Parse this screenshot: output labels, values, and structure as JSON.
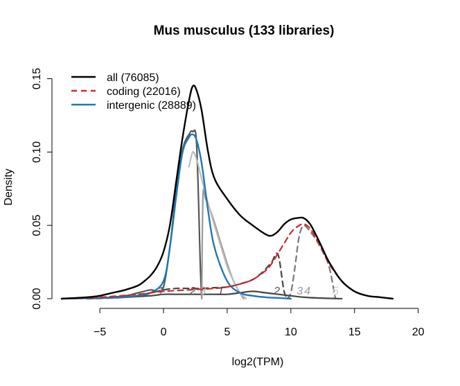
{
  "chart_data": {
    "type": "line",
    "title": "Mus musculus (133 libraries)",
    "xlabel": "log2(TPM)",
    "ylabel": "Density",
    "xlim": [
      -8,
      21
    ],
    "ylim": [
      0,
      0.155
    ],
    "xticks": [
      -5,
      0,
      5,
      10,
      15,
      20
    ],
    "xtick_labels": [
      "−5",
      "0",
      "5",
      "10",
      "15",
      "20"
    ],
    "yticks": [
      0,
      0.05,
      0.1,
      0.15
    ],
    "ytick_labels": [
      "0.00",
      "0.05",
      "0.10",
      "0.15"
    ],
    "grid": false,
    "legend_position": "top-left",
    "legend": [
      {
        "label": "all (76085)",
        "color": "#000000",
        "dash": "solid"
      },
      {
        "label": "coding (22016)",
        "color": "#d62728",
        "dash": "dashed"
      },
      {
        "label": "intergenic (28889)",
        "color": "#1f77b4",
        "dash": "solid"
      }
    ],
    "series": [
      {
        "name": "all (76085)",
        "color": "#000000",
        "dash": "solid",
        "width": 2.4,
        "x": [
          -8,
          -6,
          -5,
          -4,
          -3,
          -2,
          -1.5,
          -1,
          -0.5,
          0,
          0.5,
          1,
          1.5,
          2,
          2.3,
          2.6,
          3,
          3.5,
          4,
          5,
          6,
          7,
          8,
          8.5,
          9,
          9.5,
          10,
          10.5,
          11,
          11.5,
          12,
          12.5,
          13,
          14,
          15,
          16,
          17,
          18
        ],
        "y": [
          0,
          0.001,
          0.002,
          0.004,
          0.006,
          0.009,
          0.012,
          0.016,
          0.022,
          0.032,
          0.05,
          0.08,
          0.11,
          0.135,
          0.145,
          0.142,
          0.128,
          0.1,
          0.082,
          0.068,
          0.057,
          0.05,
          0.044,
          0.043,
          0.046,
          0.051,
          0.054,
          0.055,
          0.055,
          0.051,
          0.043,
          0.034,
          0.025,
          0.012,
          0.005,
          0.002,
          0.001,
          0
        ]
      },
      {
        "name": "coding (22016)",
        "color": "#d62728",
        "dash": "dashed",
        "width": 2.2,
        "x": [
          -8,
          -5,
          -2,
          0,
          2,
          4,
          5,
          6,
          7,
          8,
          8.5,
          9,
          9.5,
          10,
          10.5,
          11,
          11.5,
          12,
          12.5,
          13,
          14,
          15,
          16,
          17,
          18
        ],
        "y": [
          0,
          0.001,
          0.003,
          0.005,
          0.006,
          0.007,
          0.008,
          0.01,
          0.013,
          0.019,
          0.024,
          0.031,
          0.038,
          0.045,
          0.049,
          0.051,
          0.048,
          0.041,
          0.033,
          0.024,
          0.012,
          0.005,
          0.002,
          0.001,
          0
        ]
      },
      {
        "name": "",
        "color": "#444444",
        "dash": "dashed",
        "width": 2.2,
        "x": [
          -6,
          -3,
          -1,
          0,
          1,
          2,
          3,
          4,
          5,
          6,
          7,
          7.5,
          8,
          8.5,
          9,
          9.5,
          10
        ],
        "y": [
          0,
          0.001,
          0.004,
          0.006,
          0.007,
          0.007,
          0.007,
          0.0075,
          0.008,
          0.01,
          0.013,
          0.016,
          0.02,
          0.025,
          0.03,
          0.004,
          0
        ]
      },
      {
        "name": "",
        "color": "#777777",
        "dash": "dashed",
        "width": 2.2,
        "x": [
          9.7,
          10,
          10.3,
          10.6,
          10.8,
          11,
          11.2,
          11.5,
          12,
          12.5,
          13,
          13.5
        ],
        "y": [
          0,
          0.004,
          0.02,
          0.04,
          0.047,
          0.05,
          0.049,
          0.046,
          0.04,
          0.032,
          0.022,
          0
        ]
      },
      {
        "name": "intergenic (28889)",
        "color": "#1f77b4",
        "dash": "solid",
        "width": 2.4,
        "x": [
          -8,
          -5,
          -3,
          -2,
          -1,
          0,
          0.5,
          1,
          1.5,
          2,
          2.3,
          2.6,
          3,
          3.5,
          4,
          5,
          6,
          7,
          8,
          9,
          10
        ],
        "y": [
          0,
          0.0005,
          0.001,
          0.002,
          0.004,
          0.012,
          0.035,
          0.07,
          0.1,
          0.11,
          0.112,
          0.108,
          0.092,
          0.06,
          0.035,
          0.012,
          0.004,
          0.002,
          0.001,
          0.0005,
          0
        ]
      },
      {
        "name": "",
        "color": "#555555",
        "dash": "solid",
        "width": 2.2,
        "x": [
          -8,
          -5,
          -3,
          -2,
          -1,
          -0.5,
          0,
          0.5,
          1,
          1.5,
          2,
          2.3,
          2.6,
          2.9,
          3
        ],
        "y": [
          0,
          0.0005,
          0.002,
          0.004,
          0.006,
          0.005,
          0.008,
          0.035,
          0.075,
          0.102,
          0.112,
          0.114,
          0.105,
          0.02,
          0
        ]
      },
      {
        "name": "",
        "color": "#999999",
        "dash": "solid",
        "width": 2.2,
        "x": [
          3,
          3.1,
          3.3,
          3.6,
          4,
          4.5,
          5,
          5.5,
          6,
          6.3
        ],
        "y": [
          0,
          0.07,
          0.068,
          0.062,
          0.052,
          0.038,
          0.024,
          0.012,
          0.004,
          0
        ]
      },
      {
        "name": "",
        "color": "#bbbbbb",
        "dash": "solid",
        "width": 2.2,
        "x": [
          2,
          2.3,
          2.6,
          2.9,
          3.2,
          3.6,
          4,
          4.5,
          5,
          5.5,
          6,
          6.5
        ],
        "y": [
          0.09,
          0.1,
          0.095,
          0.085,
          0.075,
          0.062,
          0.05,
          0.036,
          0.022,
          0.012,
          0.004,
          0
        ]
      },
      {
        "name": "",
        "color": "#444444",
        "dash": "solid",
        "width": 2.2,
        "x": [
          -6,
          -3,
          -1,
          0,
          1,
          2,
          3,
          4,
          5,
          6,
          7,
          8,
          9,
          10,
          11,
          12,
          14
        ],
        "y": [
          0,
          0.001,
          0.002,
          0.003,
          0.003,
          0.003,
          0.003,
          0.003,
          0.003,
          0.004,
          0.005,
          0.004,
          0.003,
          0.002,
          0.001,
          0.0005,
          0
        ]
      }
    ],
    "component_labels": [
      {
        "text": "1",
        "x": -0.2,
        "y": 0.002,
        "color": "#666666"
      },
      {
        "text": "2",
        "x": 2.3,
        "y": 0.002,
        "color": "#555555"
      },
      {
        "text": "3",
        "x": 3.1,
        "y": 0.002,
        "color": "#aaaaaa"
      },
      {
        "text": "1",
        "x": 4.5,
        "y": 0.002,
        "color": "#444444"
      },
      {
        "text": "2",
        "x": 8.9,
        "y": 0.002,
        "color": "#555555"
      },
      {
        "text": "3",
        "x": 10.7,
        "y": 0.002,
        "color": "#999999"
      },
      {
        "text": "4",
        "x": 11.3,
        "y": 0.002,
        "color": "#999999"
      },
      {
        "text": "5",
        "x": 13.5,
        "y": 0.002,
        "color": "#cccccc"
      }
    ]
  }
}
